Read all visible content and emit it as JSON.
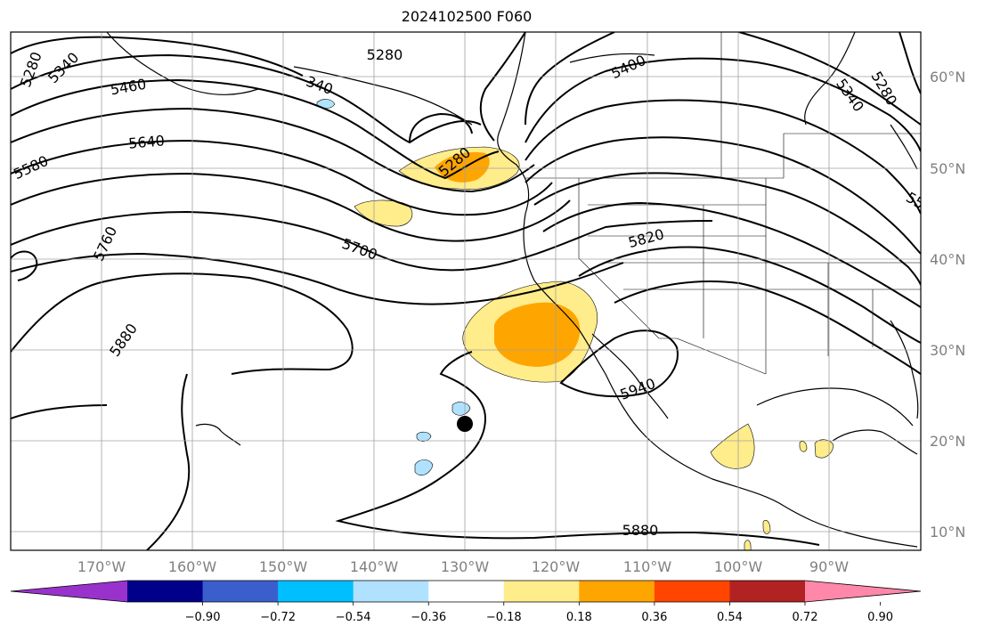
{
  "title": "2024102500 F060",
  "lat_labels": [
    "60°N",
    "50°N",
    "40°N",
    "30°N",
    "20°N",
    "10°N"
  ],
  "lon_labels": [
    "170°W",
    "160°W",
    "150°W",
    "140°W",
    "130°W",
    "120°W",
    "110°W",
    "100°W",
    "90°W"
  ],
  "contour_labels": [
    "5280",
    "5340",
    "5460",
    "5640",
    "5580",
    "5760",
    "5880",
    "5280",
    "5400",
    "5280",
    "5700",
    "5820",
    "5340",
    "5280",
    "55",
    "5940",
    "5880",
    "340"
  ],
  "colorbar": {
    "ticks": [
      "−0.90",
      "−0.72",
      "−0.54",
      "−0.36",
      "−0.18",
      "0.18",
      "0.36",
      "0.54",
      "0.72",
      "0.90"
    ],
    "colors": [
      "#9932cc",
      "#00008b",
      "#3a5fcd",
      "#00bfff",
      "#b0e2ff",
      "#ffffff",
      "#ffec8b",
      "#ffa500",
      "#ff4500",
      "#b22222",
      "#ff88aa"
    ]
  }
}
